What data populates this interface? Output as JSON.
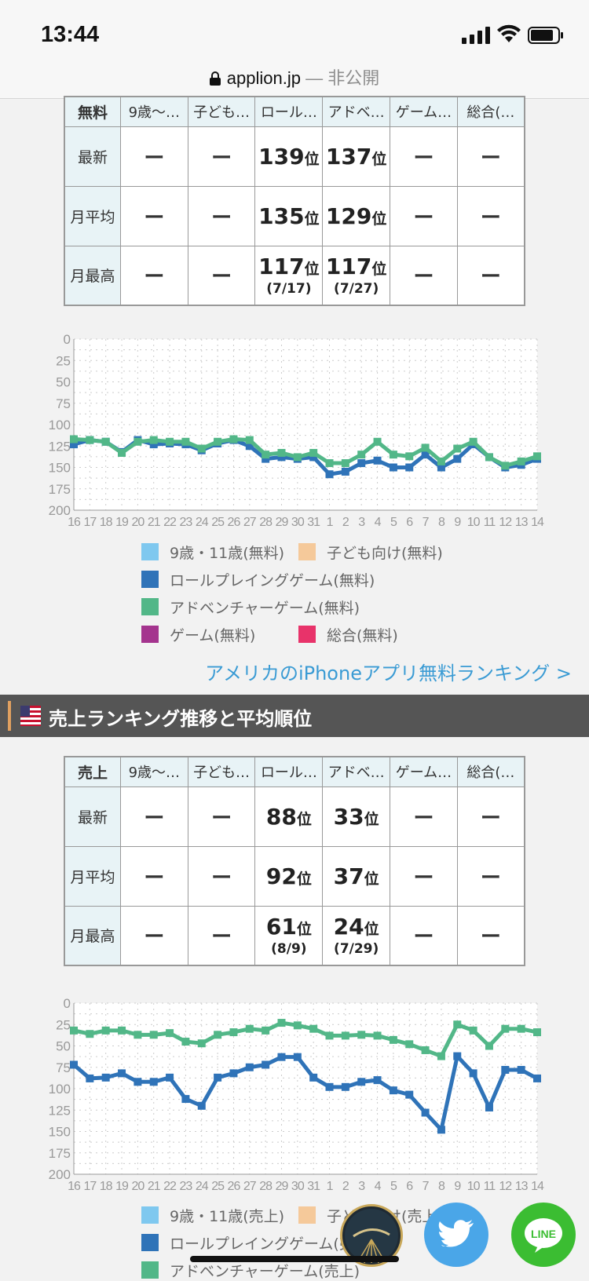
{
  "status": {
    "time": "13:44"
  },
  "browser": {
    "host": "applion.jp",
    "separator": " — ",
    "privacy": "非公開"
  },
  "free_section": {
    "table": {
      "corner": "無料",
      "columns": [
        "9歳〜…",
        "子ども…",
        "ロール…",
        "アドベ…",
        "ゲーム…",
        "総合(…"
      ],
      "rows": [
        {
          "label": "最新",
          "cells": [
            {
              "v": "ー"
            },
            {
              "v": "ー"
            },
            {
              "v": "139",
              "u": "位"
            },
            {
              "v": "137",
              "u": "位"
            },
            {
              "v": "ー"
            },
            {
              "v": "ー"
            }
          ]
        },
        {
          "label": "月平均",
          "cells": [
            {
              "v": "ー"
            },
            {
              "v": "ー"
            },
            {
              "v": "135",
              "u": "位"
            },
            {
              "v": "129",
              "u": "位"
            },
            {
              "v": "ー"
            },
            {
              "v": "ー"
            }
          ]
        },
        {
          "label": "月最高",
          "cells": [
            {
              "v": "ー"
            },
            {
              "v": "ー"
            },
            {
              "v": "117",
              "u": "位",
              "d": "(7/17)"
            },
            {
              "v": "117",
              "u": "位",
              "d": "(7/27)"
            },
            {
              "v": "ー"
            },
            {
              "v": "ー"
            }
          ]
        }
      ]
    },
    "legend": [
      {
        "label": "9歳・11歳(無料)",
        "color": "#7fc8ef"
      },
      {
        "label": "子ども向け(無料)",
        "color": "#f5c99a"
      },
      {
        "label": "ロールプレイングゲーム(無料)",
        "color": "#2f73b8"
      },
      {
        "label": "アドベンチャーゲーム(無料)",
        "color": "#52b788"
      },
      {
        "label": "ゲーム(無料)",
        "color": "#a4348e"
      },
      {
        "label": "総合(無料)",
        "color": "#e8336a"
      }
    ],
    "link": "アメリカのiPhoneアプリ無料ランキング >"
  },
  "sales_section": {
    "title": "売上ランキング推移と平均順位",
    "table": {
      "corner": "売上",
      "columns": [
        "9歳〜…",
        "子ども…",
        "ロール…",
        "アドベ…",
        "ゲーム…",
        "総合(…"
      ],
      "rows": [
        {
          "label": "最新",
          "cells": [
            {
              "v": "ー"
            },
            {
              "v": "ー"
            },
            {
              "v": "88",
              "u": "位"
            },
            {
              "v": "33",
              "u": "位"
            },
            {
              "v": "ー"
            },
            {
              "v": "ー"
            }
          ]
        },
        {
          "label": "月平均",
          "cells": [
            {
              "v": "ー"
            },
            {
              "v": "ー"
            },
            {
              "v": "92",
              "u": "位"
            },
            {
              "v": "37",
              "u": "位"
            },
            {
              "v": "ー"
            },
            {
              "v": "ー"
            }
          ]
        },
        {
          "label": "月最高",
          "cells": [
            {
              "v": "ー"
            },
            {
              "v": "ー"
            },
            {
              "v": "61",
              "u": "位",
              "d": "(8/9)"
            },
            {
              "v": "24",
              "u": "位",
              "d": "(7/29)"
            },
            {
              "v": "ー"
            },
            {
              "v": "ー"
            }
          ]
        }
      ]
    },
    "legend": [
      {
        "label": "9歳・11歳(売上)",
        "color": "#7fc8ef"
      },
      {
        "label": "子ども向け(売上)",
        "color": "#f5c99a"
      },
      {
        "label": "ロールプレイングゲーム(売上)",
        "color": "#2f73b8"
      },
      {
        "label": "アドベンチャーゲーム(売上)",
        "color": "#52b788"
      }
    ]
  },
  "chart_data": [
    {
      "type": "line",
      "x": [
        "16",
        "17",
        "18",
        "19",
        "20",
        "21",
        "22",
        "23",
        "24",
        "25",
        "26",
        "27",
        "28",
        "29",
        "30",
        "31",
        "1",
        "2",
        "3",
        "4",
        "5",
        "6",
        "7",
        "8",
        "9",
        "10",
        "11",
        "12",
        "13",
        "14"
      ],
      "ylim": [
        200,
        0
      ],
      "yticks": [
        0,
        25,
        50,
        75,
        100,
        125,
        150,
        175,
        200
      ],
      "grid": true,
      "series": [
        {
          "name": "ロールプレイングゲーム(無料)",
          "color": "#2f73b8",
          "values": [
            123,
            118,
            120,
            132,
            118,
            123,
            122,
            123,
            130,
            122,
            118,
            125,
            140,
            138,
            140,
            138,
            158,
            155,
            145,
            142,
            150,
            150,
            135,
            150,
            140,
            123,
            138,
            150,
            147,
            140
          ]
        },
        {
          "name": "アドベンチャーゲーム(無料)",
          "color": "#52b788",
          "values": [
            117,
            118,
            120,
            133,
            120,
            118,
            120,
            120,
            128,
            120,
            117,
            118,
            135,
            133,
            138,
            133,
            145,
            145,
            135,
            120,
            135,
            137,
            127,
            143,
            128,
            120,
            138,
            148,
            143,
            137
          ]
        }
      ]
    },
    {
      "type": "line",
      "x": [
        "16",
        "17",
        "18",
        "19",
        "20",
        "21",
        "22",
        "23",
        "24",
        "25",
        "26",
        "27",
        "28",
        "29",
        "30",
        "31",
        "1",
        "2",
        "3",
        "4",
        "5",
        "6",
        "7",
        "8",
        "9",
        "10",
        "11",
        "12",
        "13",
        "14"
      ],
      "ylim": [
        200,
        0
      ],
      "yticks": [
        0,
        25,
        50,
        75,
        100,
        125,
        150,
        175,
        200
      ],
      "grid": true,
      "series": [
        {
          "name": "ロールプレイングゲーム(売上)",
          "color": "#2f73b8",
          "values": [
            72,
            88,
            87,
            82,
            92,
            92,
            87,
            112,
            120,
            87,
            82,
            75,
            72,
            63,
            63,
            87,
            98,
            98,
            92,
            90,
            102,
            107,
            128,
            148,
            62,
            82,
            122,
            78,
            78,
            88
          ]
        },
        {
          "name": "アドベンチャーゲーム(売上)",
          "color": "#52b788",
          "values": [
            32,
            36,
            32,
            32,
            37,
            37,
            35,
            45,
            47,
            37,
            34,
            30,
            32,
            23,
            26,
            30,
            38,
            38,
            37,
            38,
            43,
            48,
            55,
            62,
            25,
            32,
            50,
            30,
            30,
            34
          ]
        }
      ]
    }
  ]
}
